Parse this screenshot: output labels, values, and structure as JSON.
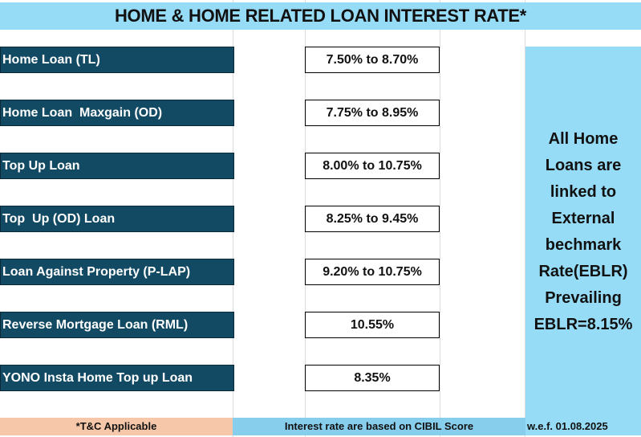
{
  "title": "HOME & HOME RELATED LOAN INTEREST RATE*",
  "loans": [
    {
      "name": "Home Loan (TL)",
      "rate": "7.50% to 8.70%"
    },
    {
      "name": "Home Loan  Maxgain (OD)",
      "rate": "7.75% to 8.95%"
    },
    {
      "name": "Top Up Loan",
      "rate": "8.00% to 10.75%"
    },
    {
      "name": "Top  Up (OD) Loan",
      "rate": "8.25% to 9.45%"
    },
    {
      "name": "Loan Against Property (P-LAP)",
      "rate": "9.20% to 10.75%"
    },
    {
      "name": "Reverse Mortgage Loan (RML)",
      "rate": "10.55%"
    },
    {
      "name": "YONO Insta Home Top up Loan",
      "rate": "8.35%"
    }
  ],
  "side_note": "All Home Loans are linked to External bechmark Rate(EBLR) Prevailing EBLR=8.15%",
  "footer": {
    "tc": "*T&C Applicable",
    "cibil": "Interest rate are based on CIBIL Score",
    "wef": "w.e.f. 01.08.2025"
  }
}
